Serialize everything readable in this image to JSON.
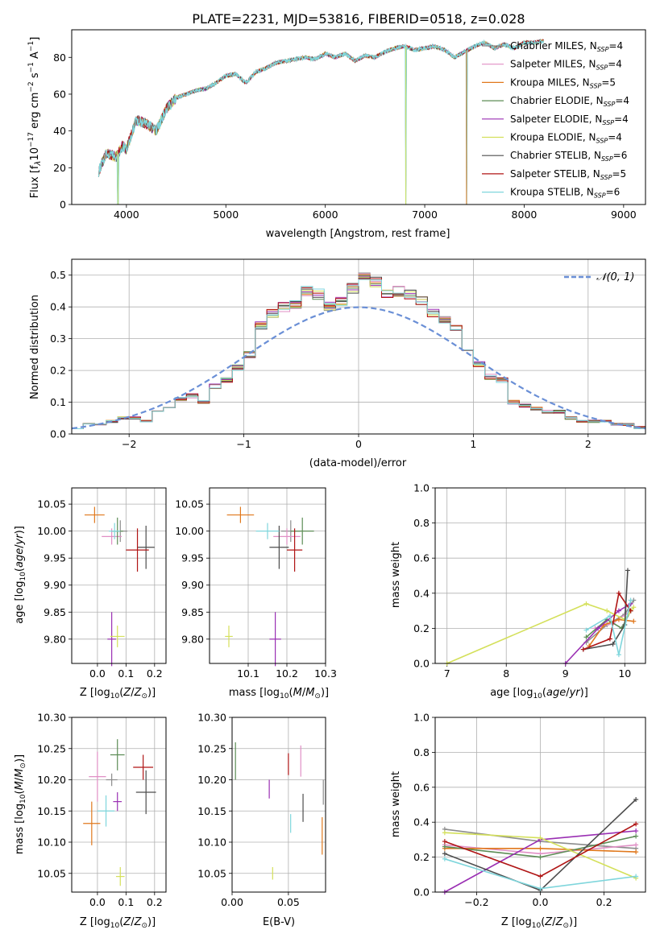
{
  "title": "PLATE=2231, MJD=53816, FIBERID=0518, z=0.028",
  "series": [
    {
      "name": "Chabrier MILES",
      "nssp": "4",
      "color": "#8c8c8c"
    },
    {
      "name": "Salpeter MILES",
      "nssp": "4",
      "color": "#e08fc5"
    },
    {
      "name": "Kroupa MILES",
      "nssp": "5",
      "color": "#e0781c"
    },
    {
      "name": "Chabrier ELODIE",
      "nssp": "4",
      "color": "#5c8c55"
    },
    {
      "name": "Salpeter ELODIE",
      "nssp": "4",
      "color": "#9a2fb3"
    },
    {
      "name": "Kroupa ELODIE",
      "nssp": "4",
      "color": "#d4e05a"
    },
    {
      "name": "Chabrier STELIB",
      "nssp": "6",
      "color": "#4d4d4d"
    },
    {
      "name": "Salpeter STELIB",
      "nssp": "5",
      "color": "#b01515"
    },
    {
      "name": "Kroupa STELIB",
      "nssp": "6",
      "color": "#7fd6dc"
    }
  ],
  "chart_data": [
    {
      "id": "spectrum",
      "type": "line",
      "xlabel": "wavelength [Angstrom, rest frame]",
      "ylabel": "Flux [f",
      "xlim": [
        3450,
        9220
      ],
      "ylim": [
        0,
        95
      ],
      "xticks": [
        4000,
        5000,
        6000,
        7000,
        8000,
        9000
      ],
      "yticks": [
        0,
        20,
        40,
        60,
        80
      ],
      "anchors": [
        [
          3720,
          18
        ],
        [
          3800,
          28
        ],
        [
          3900,
          26
        ],
        [
          3960,
          32
        ],
        [
          4000,
          30
        ],
        [
          4100,
          46
        ],
        [
          4200,
          44
        ],
        [
          4300,
          40
        ],
        [
          4400,
          52
        ],
        [
          4500,
          58
        ],
        [
          4600,
          60
        ],
        [
          4700,
          62
        ],
        [
          4800,
          63
        ],
        [
          4900,
          66
        ],
        [
          5000,
          70
        ],
        [
          5100,
          71
        ],
        [
          5200,
          66
        ],
        [
          5300,
          72
        ],
        [
          5400,
          74
        ],
        [
          5500,
          77
        ],
        [
          5600,
          78
        ],
        [
          5700,
          79
        ],
        [
          5800,
          80
        ],
        [
          5900,
          79
        ],
        [
          6000,
          82
        ],
        [
          6100,
          80
        ],
        [
          6200,
          82
        ],
        [
          6300,
          78
        ],
        [
          6400,
          81
        ],
        [
          6500,
          80
        ],
        [
          6600,
          83
        ],
        [
          6700,
          85
        ],
        [
          6800,
          86
        ],
        [
          6900,
          84
        ],
        [
          7000,
          85
        ],
        [
          7100,
          86
        ],
        [
          7200,
          84
        ],
        [
          7300,
          80
        ],
        [
          7400,
          83
        ],
        [
          7500,
          86
        ],
        [
          7600,
          88
        ],
        [
          7700,
          85
        ],
        [
          7800,
          87
        ],
        [
          7900,
          85
        ],
        [
          8000,
          88
        ],
        [
          8100,
          88
        ],
        [
          8200,
          89
        ]
      ],
      "drops": [
        [
          3915,
          0
        ],
        [
          6810,
          0
        ],
        [
          7420,
          0
        ]
      ]
    },
    {
      "id": "residuals",
      "type": "line",
      "xlabel": "(data-model)/error",
      "ylabel": "Normed distribution",
      "xlim": [
        -2.5,
        2.5
      ],
      "ylim": [
        0,
        0.55
      ],
      "xticks": [
        -2,
        -1,
        0,
        1,
        2
      ],
      "yticks": [
        0.0,
        0.1,
        0.2,
        0.3,
        0.4,
        0.5
      ],
      "bin_edges": [
        -2.5,
        -2.4,
        -2.3,
        -2.2,
        -2.1,
        -2.0,
        -1.9,
        -1.8,
        -1.7,
        -1.6,
        -1.5,
        -1.4,
        -1.3,
        -1.2,
        -1.1,
        -1.0,
        -0.9,
        -0.8,
        -0.7,
        -0.6,
        -0.5,
        -0.4,
        -0.3,
        -0.2,
        -0.1,
        0.0,
        0.1,
        0.2,
        0.3,
        0.4,
        0.5,
        0.6,
        0.7,
        0.8,
        0.9,
        1.0,
        1.1,
        1.2,
        1.3,
        1.4,
        1.5,
        1.6,
        1.7,
        1.8,
        1.9,
        2.0,
        2.1,
        2.2,
        2.3,
        2.4,
        2.5
      ],
      "base_heights": [
        0.02,
        0.03,
        0.03,
        0.04,
        0.05,
        0.05,
        0.04,
        0.07,
        0.08,
        0.11,
        0.12,
        0.1,
        0.15,
        0.17,
        0.21,
        0.25,
        0.34,
        0.38,
        0.4,
        0.41,
        0.45,
        0.44,
        0.4,
        0.42,
        0.46,
        0.5,
        0.48,
        0.44,
        0.45,
        0.44,
        0.42,
        0.38,
        0.36,
        0.33,
        0.27,
        0.22,
        0.18,
        0.17,
        0.1,
        0.09,
        0.08,
        0.07,
        0.07,
        0.05,
        0.04,
        0.04,
        0.04,
        0.03,
        0.03,
        0.02
      ],
      "reference": {
        "label": "𝒩(0, 1)",
        "color": "#6a8fd6",
        "mean": 0,
        "sigma": 1
      }
    },
    {
      "id": "age-vs-Z",
      "type": "scatter",
      "xlabel": "Z [log",
      "ylabel": "age  [log",
      "xlim": [
        -0.09,
        0.24
      ],
      "ylim": [
        9.755,
        10.08
      ],
      "xticks": [
        0.0,
        0.1,
        0.2
      ],
      "yticks": [
        9.8,
        9.85,
        9.9,
        9.95,
        10.0,
        10.05
      ],
      "points": [
        [
          0.08,
          10.0,
          0.05,
          0.04
        ],
        [
          0.05,
          9.99,
          0.07,
          0.03
        ],
        [
          -0.01,
          10.03,
          0.07,
          0.03
        ],
        [
          0.07,
          10.0,
          0.04,
          0.05
        ],
        [
          0.05,
          9.8,
          0.03,
          0.1
        ],
        [
          0.07,
          9.805,
          0.05,
          0.04
        ],
        [
          0.17,
          9.97,
          0.06,
          0.08
        ],
        [
          0.14,
          9.965,
          0.08,
          0.08
        ],
        [
          0.06,
          10.0,
          0.04,
          0.03
        ]
      ]
    },
    {
      "id": "age-vs-mass",
      "type": "scatter",
      "xlabel": "mass [log",
      "ylabel": "",
      "xlim": [
        10.0,
        10.3
      ],
      "ylim": [
        9.755,
        10.08
      ],
      "xticks": [
        10.1,
        10.2,
        10.3
      ],
      "yticks": [
        9.8,
        9.85,
        9.9,
        9.95,
        10.0,
        10.05
      ],
      "points": [
        [
          10.21,
          10.0,
          0.05,
          0.04
        ],
        [
          10.2,
          9.99,
          0.07,
          0.03
        ],
        [
          10.08,
          10.03,
          0.07,
          0.03
        ],
        [
          10.24,
          10.0,
          0.06,
          0.05
        ],
        [
          10.17,
          9.8,
          0.03,
          0.1
        ],
        [
          10.05,
          9.805,
          0.02,
          0.04
        ],
        [
          10.18,
          9.97,
          0.05,
          0.08
        ],
        [
          10.22,
          9.965,
          0.04,
          0.08
        ],
        [
          10.15,
          10.0,
          0.06,
          0.03
        ]
      ]
    },
    {
      "id": "massweight-vs-age",
      "type": "line",
      "xlabel": "age  [log",
      "ylabel": "mass weight",
      "xlim": [
        6.8,
        10.35
      ],
      "ylim": [
        0.0,
        1.0
      ],
      "xticks": [
        7,
        8,
        9,
        10
      ],
      "yticks": [
        0.0,
        0.2,
        0.4,
        0.6,
        0.8,
        1.0
      ],
      "lines": [
        [
          [
            9.35,
            0.12
          ],
          [
            9.7,
            0.22
          ],
          [
            10.0,
            0.28
          ],
          [
            10.15,
            0.36
          ]
        ],
        [
          [
            9.5,
            0.2
          ],
          [
            9.8,
            0.23
          ],
          [
            10.1,
            0.3
          ]
        ],
        [
          [
            9.4,
            0.1
          ],
          [
            9.65,
            0.22
          ],
          [
            9.9,
            0.25
          ],
          [
            10.15,
            0.24
          ]
        ],
        [
          [
            9.35,
            0.15
          ],
          [
            9.7,
            0.25
          ],
          [
            9.95,
            0.2
          ],
          [
            10.1,
            0.3
          ]
        ],
        [
          [
            9.0,
            0.0
          ],
          [
            9.55,
            0.2
          ],
          [
            9.9,
            0.3
          ],
          [
            10.1,
            0.34
          ]
        ],
        [
          [
            7.0,
            0.0
          ],
          [
            9.35,
            0.34
          ],
          [
            9.7,
            0.3
          ],
          [
            10.0,
            0.25
          ],
          [
            10.15,
            0.32
          ]
        ],
        [
          [
            9.3,
            0.08
          ],
          [
            9.8,
            0.11
          ],
          [
            10.0,
            0.22
          ],
          [
            10.05,
            0.53
          ]
        ],
        [
          [
            9.3,
            0.08
          ],
          [
            9.75,
            0.14
          ],
          [
            9.9,
            0.4
          ],
          [
            10.1,
            0.3
          ]
        ],
        [
          [
            9.35,
            0.19
          ],
          [
            9.75,
            0.27
          ],
          [
            9.9,
            0.05
          ],
          [
            10.1,
            0.36
          ]
        ]
      ]
    },
    {
      "id": "mass-vs-Z",
      "type": "scatter",
      "xlabel": "Z [log",
      "ylabel": "mass [log",
      "xlim": [
        -0.09,
        0.24
      ],
      "ylim": [
        10.02,
        10.3
      ],
      "xticks": [
        0.0,
        0.1,
        0.2
      ],
      "yticks": [
        10.05,
        10.1,
        10.15,
        10.2,
        10.25,
        10.3
      ],
      "points": [
        [
          0.05,
          10.2,
          0.04,
          0.02
        ],
        [
          0.0,
          10.205,
          0.06,
          0.08
        ],
        [
          -0.02,
          10.13,
          0.06,
          0.07
        ],
        [
          0.07,
          10.24,
          0.05,
          0.05
        ],
        [
          0.07,
          10.165,
          0.03,
          0.03
        ],
        [
          0.08,
          10.045,
          0.03,
          0.03
        ],
        [
          0.17,
          10.18,
          0.07,
          0.07
        ],
        [
          0.16,
          10.22,
          0.07,
          0.04
        ],
        [
          0.03,
          10.15,
          0.06,
          0.05
        ]
      ]
    },
    {
      "id": "mass-vs-ebv",
      "type": "scatter",
      "xlabel": "E(B-V)",
      "ylabel": "",
      "xlim": [
        0.0,
        0.083
      ],
      "ylim": [
        10.02,
        10.3
      ],
      "xticks": [
        0.0,
        0.05
      ],
      "yticks": [
        10.05,
        10.1,
        10.15,
        10.2,
        10.25,
        10.3
      ],
      "points": [
        [
          0.081,
          10.18,
          0,
          0.04
        ],
        [
          0.061,
          10.23,
          0,
          0.05
        ],
        [
          0.08,
          10.11,
          0,
          0.06
        ],
        [
          0.003,
          10.23,
          0,
          0.06
        ],
        [
          0.033,
          10.185,
          0,
          0.03
        ],
        [
          0.036,
          10.05,
          0,
          0.02
        ],
        [
          0.063,
          10.155,
          0,
          0.045
        ],
        [
          0.05,
          10.225,
          0,
          0.035
        ],
        [
          0.052,
          10.13,
          0,
          0.03
        ]
      ]
    },
    {
      "id": "massweight-vs-Z",
      "type": "line",
      "xlabel": "Z [log",
      "ylabel": "mass weight",
      "xlim": [
        -0.33,
        0.33
      ],
      "ylim": [
        0.0,
        1.0
      ],
      "xticks": [
        -0.2,
        0.0,
        0.2
      ],
      "yticks": [
        0.0,
        0.2,
        0.4,
        0.6,
        0.8,
        1.0
      ],
      "lines": [
        [
          [
            -0.3,
            0.36
          ],
          [
            0.0,
            0.29
          ],
          [
            0.3,
            0.25
          ]
        ],
        [
          [
            -0.3,
            0.27
          ],
          [
            0.0,
            0.22
          ],
          [
            0.3,
            0.27
          ]
        ],
        [
          [
            -0.3,
            0.25
          ],
          [
            0.0,
            0.25
          ],
          [
            0.3,
            0.23
          ]
        ],
        [
          [
            -0.3,
            0.26
          ],
          [
            0.0,
            0.2
          ],
          [
            0.3,
            0.32
          ]
        ],
        [
          [
            -0.3,
            0.0
          ],
          [
            0.0,
            0.3
          ],
          [
            0.3,
            0.35
          ]
        ],
        [
          [
            -0.3,
            0.34
          ],
          [
            0.0,
            0.31
          ],
          [
            0.3,
            0.08
          ]
        ],
        [
          [
            -0.3,
            0.22
          ],
          [
            0.0,
            0.01
          ],
          [
            0.3,
            0.53
          ]
        ],
        [
          [
            -0.3,
            0.29
          ],
          [
            0.0,
            0.09
          ],
          [
            0.3,
            0.39
          ]
        ],
        [
          [
            -0.3,
            0.19
          ],
          [
            0.0,
            0.02
          ],
          [
            0.3,
            0.09
          ]
        ]
      ]
    }
  ]
}
